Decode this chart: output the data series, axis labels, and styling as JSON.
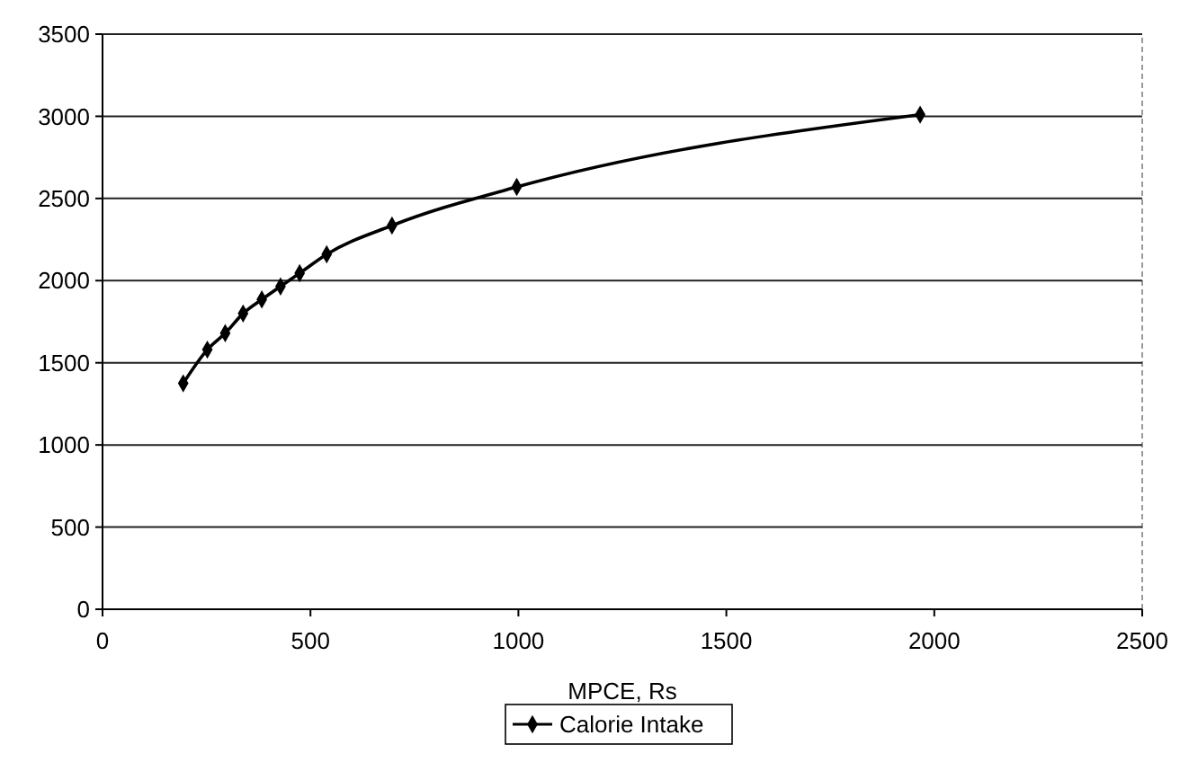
{
  "chart_data": {
    "type": "line",
    "xlabel": "MPCE, Rs",
    "xlim": [
      0,
      2500
    ],
    "xticks": [
      0,
      500,
      1000,
      1500,
      2000,
      2500
    ],
    "ylim": [
      0,
      3500
    ],
    "yticks": [
      0,
      500,
      1000,
      1500,
      2000,
      2500,
      3000,
      3500
    ],
    "grid": "y",
    "legend": "bottom",
    "marker": "diamond",
    "line_style": "solid",
    "series": [
      {
        "name": "Calorie Intake",
        "color": "#000000",
        "x": [
          194,
          252,
          295,
          338,
          383,
          428,
          474,
          539,
          696,
          996,
          1966
        ],
        "values": [
          1375,
          1580,
          1680,
          1800,
          1885,
          1965,
          2045,
          2160,
          2335,
          2570,
          3010
        ]
      }
    ]
  }
}
